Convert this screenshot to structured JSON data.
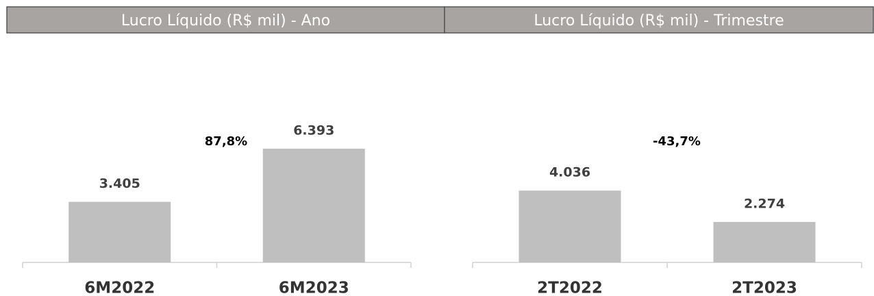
{
  "chart_data": [
    {
      "type": "bar",
      "title": "Lucro Líquido (R$ mil) - Ano",
      "categories": [
        "6M2022",
        "6M2023"
      ],
      "values": [
        3405,
        6393
      ],
      "value_labels": [
        "3.405",
        "6.393"
      ],
      "color": "#bfbfbf",
      "annotation": "87,8%"
    },
    {
      "type": "bar",
      "title": "Lucro Líquido (R$ mil) - Trimestre",
      "categories": [
        "2T2022",
        "2T2023"
      ],
      "values": [
        4036,
        2274
      ],
      "value_labels": [
        "4.036",
        "2.274"
      ],
      "color": "#bfbfbf",
      "annotation": "-43,7%"
    }
  ]
}
